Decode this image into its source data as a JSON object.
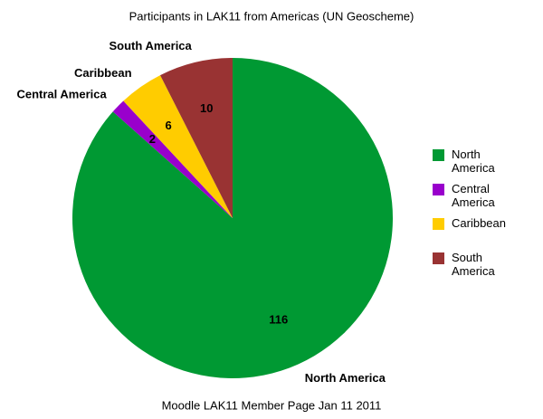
{
  "chart_data": {
    "type": "pie",
    "title": "Participants in LAK11 from Americas (UN Geoscheme)",
    "caption": "Moodle LAK11 Member Page Jan 11 2011",
    "categories": [
      "North America",
      "Central America",
      "Caribbean",
      "South America"
    ],
    "values": [
      116,
      2,
      6,
      10
    ],
    "colors": [
      "#009933",
      "#9900cc",
      "#ffcc00",
      "#993333"
    ]
  }
}
